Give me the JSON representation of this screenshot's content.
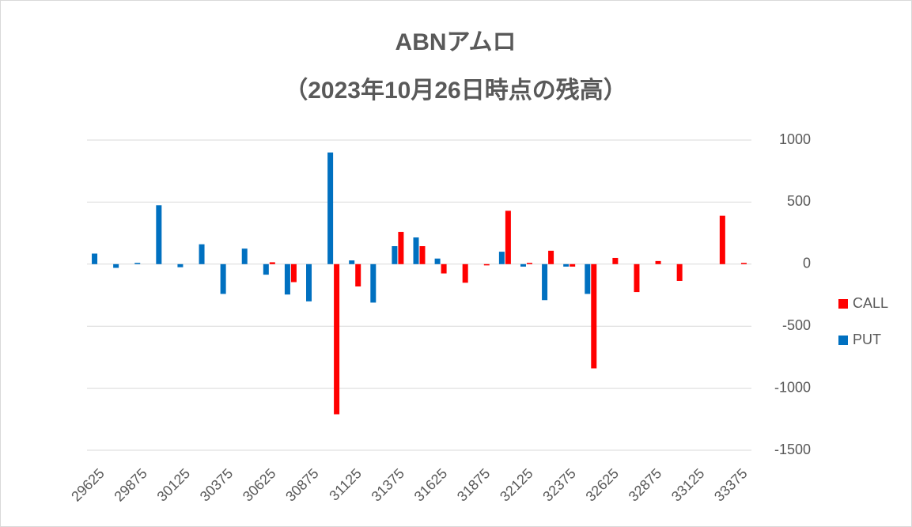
{
  "chart_data": {
    "type": "bar",
    "title": "ABNアムロ",
    "subtitle": "（2023年10月26日時点の残高）",
    "categories": [
      "29625",
      null,
      "29875",
      null,
      "30125",
      null,
      "30375",
      null,
      "30625",
      null,
      "30875",
      null,
      "31125",
      null,
      "31375",
      null,
      "31625",
      null,
      "31875",
      null,
      "32125",
      null,
      "32375",
      null,
      "32625",
      null,
      "32875",
      null,
      "33125",
      null,
      "33375"
    ],
    "series": [
      {
        "name": "CALL",
        "color": "#ff0000",
        "values": [
          0,
          0,
          0,
          0,
          0,
          0,
          0,
          0,
          15,
          -145,
          0,
          -1210,
          -180,
          0,
          260,
          145,
          -75,
          -150,
          -10,
          430,
          10,
          108,
          -20,
          -840,
          50,
          -225,
          25,
          -135,
          0,
          390,
          10
        ]
      },
      {
        "name": "PUT",
        "color": "#0070c0",
        "values": [
          85,
          -30,
          10,
          475,
          -25,
          160,
          -240,
          125,
          -85,
          -245,
          -300,
          900,
          30,
          -310,
          145,
          215,
          45,
          0,
          0,
          100,
          -20,
          -290,
          -20,
          -240,
          0,
          0,
          0,
          0,
          0,
          0,
          0
        ]
      }
    ],
    "ylim": [
      -1500,
      1000
    ],
    "yticks": [
      -1500,
      -1000,
      -500,
      0,
      500,
      1000
    ],
    "grid": true,
    "legend": "right"
  }
}
